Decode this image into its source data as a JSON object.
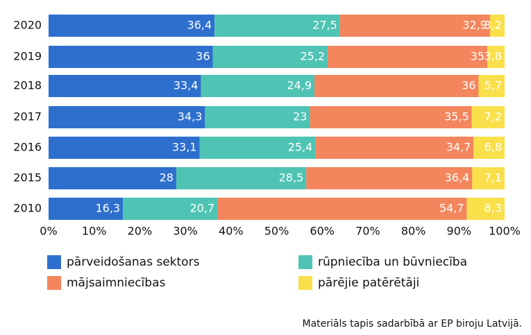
{
  "chart_data": {
    "type": "stacked-barh",
    "categories": [
      "2020",
      "2019",
      "2018",
      "2017",
      "2016",
      "2015",
      "2010"
    ],
    "series": [
      {
        "name": "pārveidošanas sektors",
        "color": "#2e6fce",
        "values": [
          36.4,
          36,
          33.4,
          34.3,
          33.1,
          28,
          16.3
        ],
        "value_labels": [
          "36,4",
          "36",
          "33,4",
          "34,3",
          "33,1",
          "28",
          "16,3"
        ]
      },
      {
        "name": "rūpniecība un būvniecība",
        "color": "#4fc4b4",
        "values": [
          27.5,
          25.2,
          24.9,
          23,
          25.4,
          28.5,
          20.7
        ],
        "value_labels": [
          "27,5",
          "25,2",
          "24,9",
          "23",
          "25,4",
          "28,5",
          "20,7"
        ]
      },
      {
        "name": "mājsaimniecības",
        "color": "#f4865e",
        "values": [
          32.9,
          35,
          36,
          35.5,
          34.7,
          36.4,
          54.7
        ],
        "value_labels": [
          "32,9",
          "35",
          "36",
          "35,5",
          "34,7",
          "36,4",
          "54,7"
        ]
      },
      {
        "name": "pārējie patērētāji",
        "color": "#f9e04b",
        "values": [
          3.2,
          3.8,
          5.7,
          7.2,
          6.8,
          7.1,
          8.3
        ],
        "value_labels": [
          "3,2",
          "3,8",
          "5,7",
          "7,2",
          "6,8",
          "7,1",
          "8,3"
        ]
      }
    ],
    "xlim": [
      0,
      100
    ],
    "xticks": [
      {
        "value": 0,
        "label": "0%"
      },
      {
        "value": 10,
        "label": "10%"
      },
      {
        "value": 20,
        "label": "20%"
      },
      {
        "value": 30,
        "label": "30%"
      },
      {
        "value": 40,
        "label": "40%"
      },
      {
        "value": 50,
        "label": "50%"
      },
      {
        "value": 60,
        "label": "60%"
      },
      {
        "value": 70,
        "label": "70%"
      },
      {
        "value": 80,
        "label": "80%"
      },
      {
        "value": 90,
        "label": "90%"
      },
      {
        "value": 100,
        "label": "100%"
      }
    ],
    "source": "Materiāls tapis sadarbībā ar EP biroju Latvijā."
  }
}
